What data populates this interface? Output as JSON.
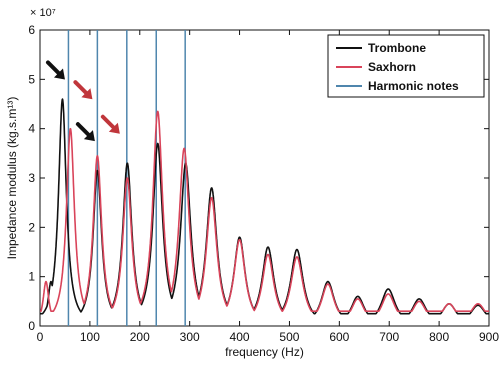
{
  "chart_data": {
    "type": "line",
    "xlabel": "frequency (Hz)",
    "ylabel": "Impedance modulus (kg.s.m¹³)",
    "y_multiplier": "× 10⁷",
    "xlim": [
      0,
      900
    ],
    "ylim": [
      0,
      6
    ],
    "x_ticks": [
      0,
      100,
      200,
      300,
      400,
      500,
      600,
      700,
      800,
      900
    ],
    "y_ticks": [
      0,
      1,
      2,
      3,
      4,
      5,
      6
    ],
    "grid": false,
    "legend_placement": "top-right",
    "series": [
      {
        "name": "Trombone",
        "color": "#111111",
        "peaks": [
          [
            22,
            0.9
          ],
          [
            45,
            4.6
          ],
          [
            115,
            3.15
          ],
          [
            175,
            3.3
          ],
          [
            236,
            3.7
          ],
          [
            292,
            3.3
          ],
          [
            344,
            2.8
          ],
          [
            400,
            1.8
          ],
          [
            457,
            1.6
          ],
          [
            515,
            1.55
          ],
          [
            577,
            0.9
          ],
          [
            637,
            0.6
          ],
          [
            698,
            0.75
          ],
          [
            760,
            0.55
          ],
          [
            820,
            0.45
          ],
          [
            878,
            0.42
          ]
        ],
        "baseline": 0.25
      },
      {
        "name": "Saxhorn",
        "color": "#d9445a",
        "peaks": [
          [
            12,
            0.9
          ],
          [
            61,
            4.0
          ],
          [
            115,
            3.45
          ],
          [
            175,
            3.0
          ],
          [
            236,
            4.35
          ],
          [
            289,
            3.6
          ],
          [
            344,
            2.6
          ],
          [
            400,
            1.75
          ],
          [
            457,
            1.45
          ],
          [
            515,
            1.4
          ],
          [
            577,
            0.85
          ],
          [
            637,
            0.55
          ],
          [
            698,
            0.65
          ],
          [
            760,
            0.5
          ],
          [
            820,
            0.45
          ],
          [
            878,
            0.45
          ]
        ],
        "baseline": 0.3
      }
    ],
    "harmonic_notes": {
      "name": "Harmonic notes",
      "color": "#4f86ad",
      "x": [
        57,
        115,
        174,
        233,
        291
      ]
    },
    "markers": [
      {
        "color": "#111111",
        "x": 30,
        "y": 5.2
      },
      {
        "color": "#c0363b",
        "x": 85,
        "y": 4.8
      },
      {
        "color": "#111111",
        "x": 90,
        "y": 3.95
      },
      {
        "color": "#c0363b",
        "x": 140,
        "y": 4.1
      }
    ]
  }
}
